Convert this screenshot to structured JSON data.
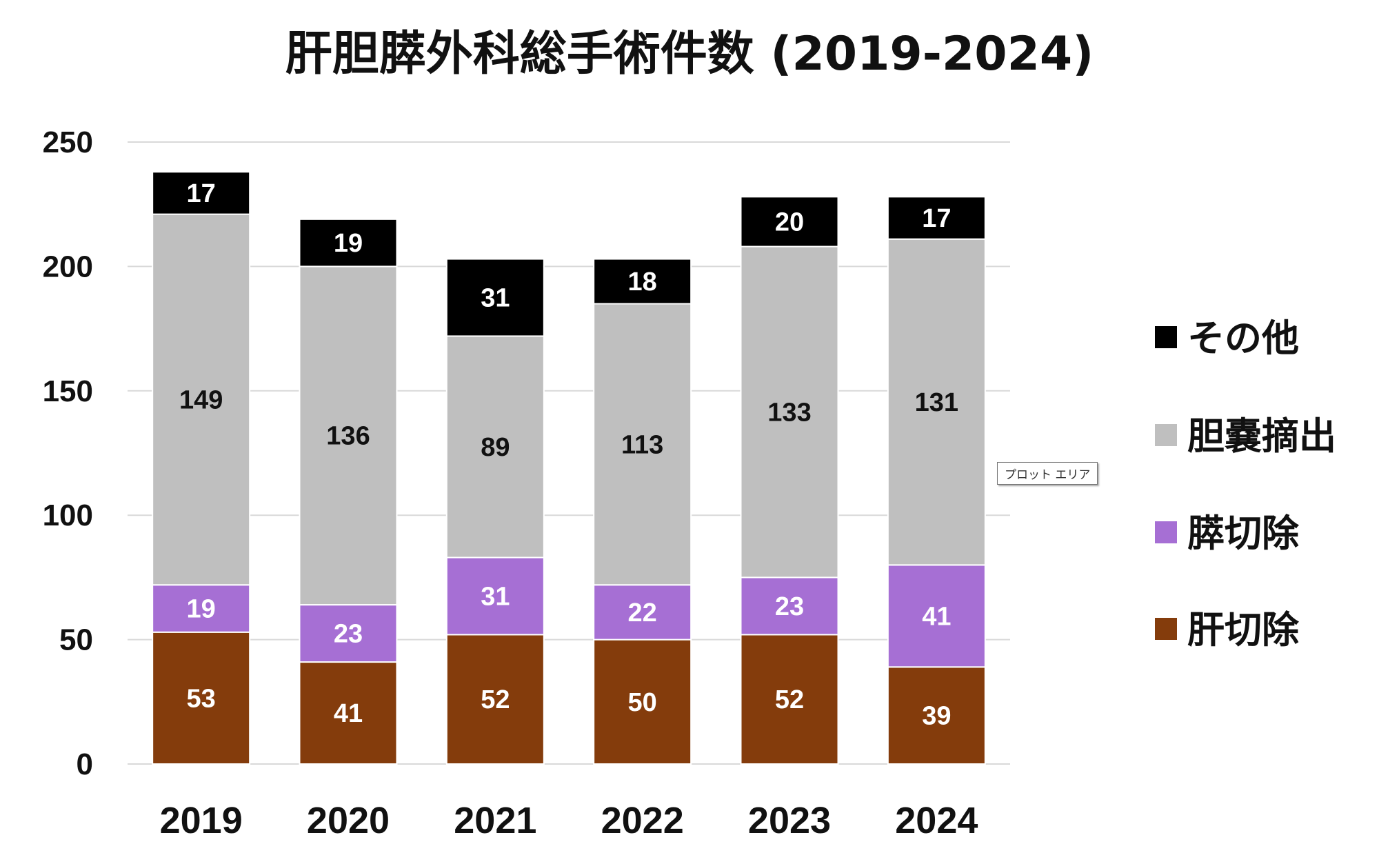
{
  "chart_data": {
    "type": "bar",
    "stacked": true,
    "title": "肝胆膵外科総手術件数 (2019-2024)",
    "categories": [
      "2019",
      "2020",
      "2021",
      "2022",
      "2023",
      "2024"
    ],
    "series": [
      {
        "name": "肝切除",
        "color": "#843C0C",
        "label_color": "#ffffff",
        "values": [
          53,
          41,
          52,
          50,
          52,
          39
        ]
      },
      {
        "name": "膵切除",
        "color": "#A66FD4",
        "label_color": "#ffffff",
        "values": [
          19,
          23,
          31,
          22,
          23,
          41
        ]
      },
      {
        "name": "胆嚢摘出",
        "color": "#BFBFBF",
        "label_color": "#111111",
        "values": [
          149,
          136,
          89,
          113,
          133,
          131
        ]
      },
      {
        "name": "その他",
        "color": "#000000",
        "label_color": "#ffffff",
        "values": [
          17,
          19,
          31,
          18,
          20,
          17
        ]
      }
    ],
    "ylim": [
      0,
      250
    ],
    "yticks": [
      0,
      50,
      100,
      150,
      200,
      250
    ],
    "grid": true,
    "legend_position": "right",
    "legend_order": [
      "その他",
      "胆嚢摘出",
      "膵切除",
      "肝切除"
    ]
  },
  "tooltip": {
    "plot_area": "プロット エリア"
  }
}
